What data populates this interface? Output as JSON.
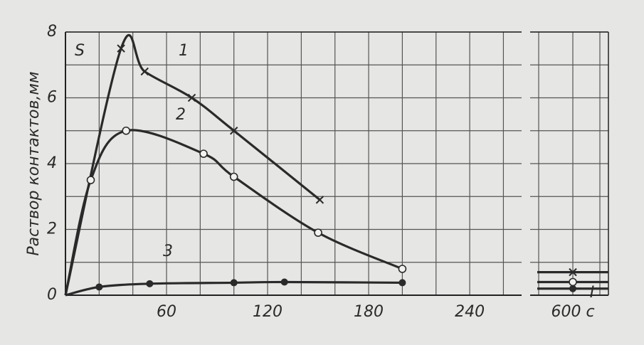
{
  "chart_data": {
    "type": "line",
    "y_label": "Раствор контактов,мм",
    "y_symbol": "S",
    "annotation": "I",
    "xlim": [
      0,
      600
    ],
    "ylim": [
      0,
      8
    ],
    "xticks": [
      60,
      120,
      180,
      240,
      {
        "value": 600,
        "label": "600 с"
      }
    ],
    "yticks": [
      0,
      2,
      4,
      6,
      8
    ],
    "grid": true,
    "series": [
      {
        "name": "1",
        "color": "#2a2a2a",
        "marker": "cross",
        "x": [
          0,
          33,
          47,
          75,
          100,
          151,
          null,
          600
        ],
        "values": [
          0,
          7.5,
          6.8,
          6.0,
          5.0,
          2.9,
          null,
          0.7
        ]
      },
      {
        "name": "2",
        "color": "#2a2a2a",
        "marker": "circle",
        "x": [
          0,
          15,
          36,
          82,
          100,
          150,
          200,
          null,
          600
        ],
        "values": [
          0,
          3.5,
          5.0,
          4.3,
          3.6,
          1.9,
          0.8,
          null,
          0.4
        ]
      },
      {
        "name": "3",
        "color": "#2a2a2a",
        "marker": "dot",
        "x": [
          0,
          20,
          50,
          100,
          130,
          200,
          null,
          600
        ],
        "values": [
          0,
          0.25,
          0.35,
          0.38,
          0.4,
          0.38,
          null,
          0.2
        ]
      }
    ]
  }
}
